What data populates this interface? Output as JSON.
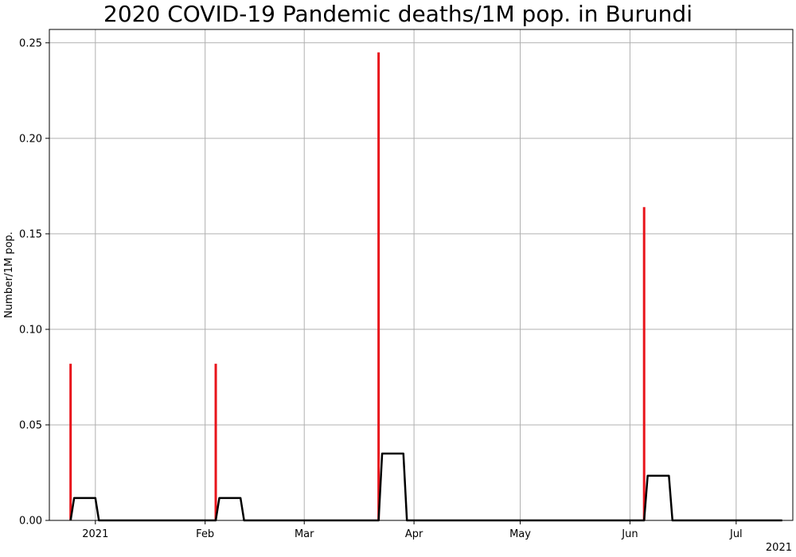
{
  "chart_data": {
    "type": "bar",
    "title": "2020 COVID-19 Pandemic deaths/1M pop. in Burundi",
    "xlabel": "",
    "ylabel": "Number/1M pop.",
    "x_offset_label": "2021",
    "xlim": [
      "2020-12-19",
      "2021-07-17"
    ],
    "ylim": [
      0,
      0.257
    ],
    "grid": true,
    "x_ticks": [
      {
        "date": "2021-01-01",
        "label": "2021"
      },
      {
        "date": "2021-02-01",
        "label": "Feb"
      },
      {
        "date": "2021-03-01",
        "label": "Mar"
      },
      {
        "date": "2021-04-01",
        "label": "Apr"
      },
      {
        "date": "2021-05-01",
        "label": "May"
      },
      {
        "date": "2021-06-01",
        "label": "Jun"
      },
      {
        "date": "2021-07-01",
        "label": "Jul"
      }
    ],
    "y_ticks": [
      0.0,
      0.05,
      0.1,
      0.15,
      0.2,
      0.25
    ],
    "y_tick_labels": [
      "0.00",
      "0.05",
      "0.10",
      "0.15",
      "0.20",
      "0.25"
    ],
    "series": [
      {
        "type": "bar",
        "color": "#e8141b",
        "points": [
          {
            "date": "2020-12-25",
            "value": 0.082
          },
          {
            "date": "2021-02-04",
            "value": 0.082
          },
          {
            "date": "2021-03-22",
            "value": 0.245
          },
          {
            "date": "2021-06-05",
            "value": 0.164
          }
        ]
      },
      {
        "type": "line",
        "color": "#000000",
        "points": [
          {
            "date": "2020-12-25",
            "value": 0.0
          },
          {
            "date": "2020-12-26",
            "value": 0.0117
          },
          {
            "date": "2021-01-01",
            "value": 0.0117
          },
          {
            "date": "2021-01-02",
            "value": 0.0
          },
          {
            "date": "2021-02-04",
            "value": 0.0
          },
          {
            "date": "2021-02-05",
            "value": 0.0117
          },
          {
            "date": "2021-02-11",
            "value": 0.0117
          },
          {
            "date": "2021-02-12",
            "value": 0.0
          },
          {
            "date": "2021-03-22",
            "value": 0.0
          },
          {
            "date": "2021-03-23",
            "value": 0.035
          },
          {
            "date": "2021-03-29",
            "value": 0.035
          },
          {
            "date": "2021-03-30",
            "value": 0.0
          },
          {
            "date": "2021-06-05",
            "value": 0.0
          },
          {
            "date": "2021-06-06",
            "value": 0.0234
          },
          {
            "date": "2021-06-12",
            "value": 0.0234
          },
          {
            "date": "2021-06-13",
            "value": 0.0
          },
          {
            "date": "2021-07-14",
            "value": 0.0
          }
        ]
      }
    ]
  }
}
